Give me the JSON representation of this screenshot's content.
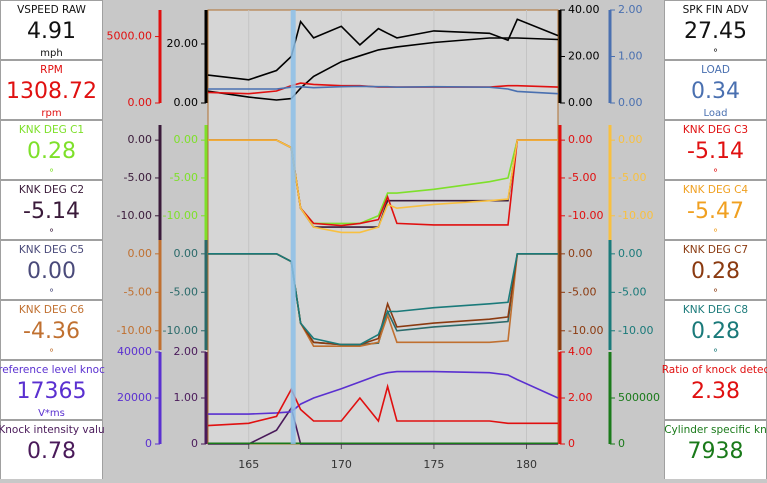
{
  "gauges_left": [
    {
      "name": "VSPEED RAW",
      "value": "4.91",
      "unit": "mph",
      "color": "#111111"
    },
    {
      "name": "RPM",
      "value": "1308.72",
      "unit": "rpm",
      "color": "#e01010"
    },
    {
      "name": "KNK DEG C1",
      "value": "0.28",
      "unit": "°",
      "color": "#7ee02a"
    },
    {
      "name": "KNK DEG C2",
      "value": "-5.14",
      "unit": "°",
      "color": "#3a1a3a"
    },
    {
      "name": "KNK DEG C5",
      "value": "0.00",
      "unit": "°",
      "color": "#4a4a7a"
    },
    {
      "name": "KNK DEG C6",
      "value": "-4.36",
      "unit": "°",
      "color": "#c07030"
    },
    {
      "name": "reference level knoc",
      "value": "17365",
      "unit": "V*ms",
      "color": "#5a30d0"
    },
    {
      "name": "Knock intensity valu",
      "value": "0.78",
      "color": "#4a1a5a"
    }
  ],
  "gauges_right": [
    {
      "name": "SPK FIN ADV",
      "value": "27.45",
      "unit": "°",
      "color": "#111111"
    },
    {
      "name": "LOAD",
      "value": "0.34",
      "unit": "Load",
      "color": "#4a70b0"
    },
    {
      "name": "KNK DEG C3",
      "value": "-5.14",
      "unit": "°",
      "color": "#e01010"
    },
    {
      "name": "KNK DEG C4",
      "value": "-5.47",
      "unit": "°",
      "color": "#f0a020"
    },
    {
      "name": "KNK DEG C7",
      "value": "0.28",
      "unit": "°",
      "color": "#8b3a10"
    },
    {
      "name": "KNK DEG C8",
      "value": "0.28",
      "unit": "°",
      "color": "#1a7a7a"
    },
    {
      "name": "Ratio of knock detec",
      "value": "2.38",
      "color": "#e01010"
    },
    {
      "name": "Cylinder specific kn",
      "value": "7938",
      "color": "#1a7a1a"
    }
  ],
  "chart_data": {
    "type": "line",
    "xlim": [
      162.8,
      181.7
    ],
    "xticks": [
      165,
      170,
      175,
      180
    ],
    "cursor_x": 167.4,
    "x": [
      162.8,
      165,
      166.5,
      167.3,
      167.8,
      168.5,
      170,
      171,
      172,
      172.5,
      173,
      175,
      178,
      179,
      179.5,
      181.7
    ],
    "panes": [
      {
        "series": [
          {
            "color": "#000000",
            "side": "left",
            "ylim": [
              0,
              31.5
            ],
            "yticks": [
              {
                "value": 0,
                "label": "0.00"
              },
              {
                "value": 20,
                "label": "20.00"
              }
            ],
            "values": [
              4,
              2,
              1,
              1.5,
              5,
              9,
              14,
              16,
              18,
              18.5,
              19,
              20.5,
              22,
              22,
              22,
              21.5
            ]
          },
          {
            "color": "#e01010",
            "side": "left",
            "ylim": [
              0,
              7000
            ],
            "yticks": [
              {
                "value": 0,
                "label": "0.00"
              },
              {
                "value": 5000,
                "label": "5000.00"
              }
            ],
            "values": [
              800,
              700,
              900,
              1300,
              1500,
              1400,
              1300,
              1300,
              1200,
              1200,
              1200,
              1200,
              1200,
              1300,
              1300,
              1200
            ]
          },
          {
            "color": "#000000",
            "side": "right",
            "ylim": [
              0,
              40
            ],
            "yticks": [
              {
                "value": 0,
                "label": "0.00"
              },
              {
                "value": 20,
                "label": "20.00"
              },
              {
                "value": 40,
                "label": "40.00"
              }
            ],
            "values": [
              12,
              10,
              14,
              20,
              35,
              28,
              33,
              25,
              32,
              30,
              28,
              31,
              30,
              27,
              36,
              29
            ]
          },
          {
            "color": "#4a70b0",
            "side": "right",
            "ylim": [
              0,
              2
            ],
            "yticks": [
              {
                "value": 0,
                "label": "0.00"
              },
              {
                "value": 1,
                "label": "1.00"
              },
              {
                "value": 2,
                "label": "2.00"
              }
            ],
            "values": [
              0.3,
              0.3,
              0.3,
              0.34,
              0.35,
              0.33,
              0.35,
              0.36,
              0.35,
              0.35,
              0.34,
              0.35,
              0.34,
              0.3,
              0.25,
              0.2
            ]
          }
        ]
      },
      {
        "series": [
          {
            "color": "#7ee02a",
            "side": "left",
            "ylim": [
              -13.2,
              2
            ],
            "yticks": [
              {
                "value": 0,
                "label": "0.00"
              },
              {
                "value": -5,
                "label": "-5.00"
              },
              {
                "value": -10,
                "label": "-10.00"
              }
            ],
            "values": [
              0,
              0,
              0,
              -1,
              -9,
              -11,
              -11,
              -11,
              -10,
              -7,
              -7,
              -6.5,
              -5.5,
              -5,
              0,
              0
            ]
          },
          {
            "color": "#3a1a3a",
            "side": "left",
            "ylim": [
              -13.2,
              2
            ],
            "yticks": [
              {
                "value": 0,
                "label": "0.00"
              },
              {
                "value": -5,
                "label": "-5.00"
              },
              {
                "value": -10,
                "label": "-10.00"
              }
            ],
            "values": [
              0,
              0,
              0,
              -1,
              -9,
              -11.5,
              -11.5,
              -11.5,
              -11.5,
              -8,
              -8,
              -8,
              -8,
              -8,
              0,
              0
            ]
          },
          {
            "color": "#e01010",
            "side": "right",
            "ylim": [
              -13.2,
              2
            ],
            "yticks": [
              {
                "value": 0,
                "label": "0.00"
              },
              {
                "value": -5,
                "label": "-5.00"
              },
              {
                "value": -10,
                "label": "-10.00"
              }
            ],
            "values": [
              0,
              0,
              0,
              -1,
              -9,
              -11,
              -11.3,
              -11,
              -10.5,
              -7.5,
              -11,
              -11.2,
              -11.2,
              -11.2,
              0,
              0
            ]
          },
          {
            "color": "#f8c040",
            "side": "right",
            "ylim": [
              -13.2,
              2
            ],
            "yticks": [
              {
                "value": 0,
                "label": "0.00"
              },
              {
                "value": -5,
                "label": "-5.00"
              },
              {
                "value": -10,
                "label": "-10.00"
              }
            ],
            "values": [
              0,
              0,
              0,
              -1,
              -9,
              -11.5,
              -12.2,
              -12.2,
              -11.5,
              -8.5,
              -9,
              -8.5,
              -8,
              -7.8,
              0,
              0
            ]
          }
        ]
      },
      {
        "series": [
          {
            "color": "#2a6a6a",
            "side": "left",
            "ylim": [
              -12.5,
              1.8
            ],
            "yticks": [
              {
                "value": 0,
                "label": "0.00"
              },
              {
                "value": -5,
                "label": "-5.00"
              },
              {
                "value": -10,
                "label": "-10.00"
              }
            ],
            "values": [
              0,
              0,
              0,
              -1,
              -9,
              -11.5,
              -11.8,
              -11.8,
              -11.6,
              -7.5,
              -10,
              -9.5,
              -9,
              -8.8,
              0,
              0
            ]
          },
          {
            "color": "#c07030",
            "side": "left",
            "ylim": [
              -12.5,
              1.8
            ],
            "yticks": [
              {
                "value": 0,
                "label": "0.00"
              },
              {
                "value": -5,
                "label": "-5.00"
              },
              {
                "value": -10,
                "label": "-10.00"
              }
            ],
            "values": [
              0,
              0,
              0,
              -1,
              -9,
              -12,
              -12,
              -12,
              -11.5,
              -8,
              -11.5,
              -11.5,
              -11.5,
              -11.3,
              0,
              0
            ]
          },
          {
            "color": "#8b3a10",
            "side": "right",
            "ylim": [
              -12.5,
              1.8
            ],
            "yticks": [
              {
                "value": 0,
                "label": "0.00"
              },
              {
                "value": -5,
                "label": "-5.00"
              },
              {
                "value": -10,
                "label": "-10.00"
              }
            ],
            "values": [
              0,
              0,
              0,
              -1,
              -9,
              -11.5,
              -11.8,
              -11.8,
              -11,
              -6.5,
              -9.5,
              -9,
              -8.5,
              -8.2,
              0,
              0
            ]
          },
          {
            "color": "#1a7a7a",
            "side": "right",
            "ylim": [
              -12.5,
              1.8
            ],
            "yticks": [
              {
                "value": 0,
                "label": "0.00"
              },
              {
                "value": -5,
                "label": "-5.00"
              },
              {
                "value": -10,
                "label": "-10.00"
              }
            ],
            "values": [
              0,
              0,
              0,
              -1,
              -9,
              -11,
              -11.8,
              -11.8,
              -10.5,
              -7.5,
              -7.5,
              -7,
              -6.5,
              -6.3,
              0,
              0
            ]
          }
        ]
      },
      {
        "series": [
          {
            "color": "#4a1a5a",
            "side": "left",
            "ylim": [
              0,
              2
            ],
            "yticks": [
              {
                "value": 0,
                "label": "0"
              },
              {
                "value": 1,
                "label": "1.00"
              },
              {
                "value": 2,
                "label": "2.00"
              }
            ],
            "values": [
              0,
              0,
              0.3,
              0.78,
              0,
              0,
              0,
              0,
              0,
              0,
              0,
              0,
              0,
              0,
              0,
              0
            ]
          },
          {
            "color": "#5a30d0",
            "side": "left",
            "ylim": [
              0,
              40000
            ],
            "yticks": [
              0,
              20000,
              40000
            ],
            "values": [
              13000,
              13000,
              13500,
              14000,
              17365,
              20000,
              24000,
              27000,
              30000,
              31000,
              31500,
              31500,
              31000,
              30000,
              28000,
              20000
            ]
          },
          {
            "color": "#e01010",
            "side": "right",
            "ylim": [
              0,
              4
            ],
            "yticks": [
              {
                "value": 0,
                "label": "0"
              },
              {
                "value": 2,
                "label": "2.00"
              },
              {
                "value": 4,
                "label": "4.00"
              }
            ],
            "values": [
              0.8,
              0.9,
              1.2,
              2.38,
              1.5,
              1.0,
              1.0,
              2.0,
              1.0,
              2.5,
              1.0,
              1.0,
              1.0,
              0.9,
              0.9,
              0.9
            ]
          },
          {
            "color": "#1a7a1a",
            "side": "right",
            "ylim": [
              0,
              1000000
            ],
            "yticks": [
              0,
              500000
            ],
            "values": [
              7938,
              7938,
              7938,
              7938,
              7938,
              7938,
              7938,
              7938,
              7938,
              7938,
              7938,
              7938,
              7938,
              7938,
              7938,
              7938
            ]
          }
        ]
      }
    ]
  }
}
